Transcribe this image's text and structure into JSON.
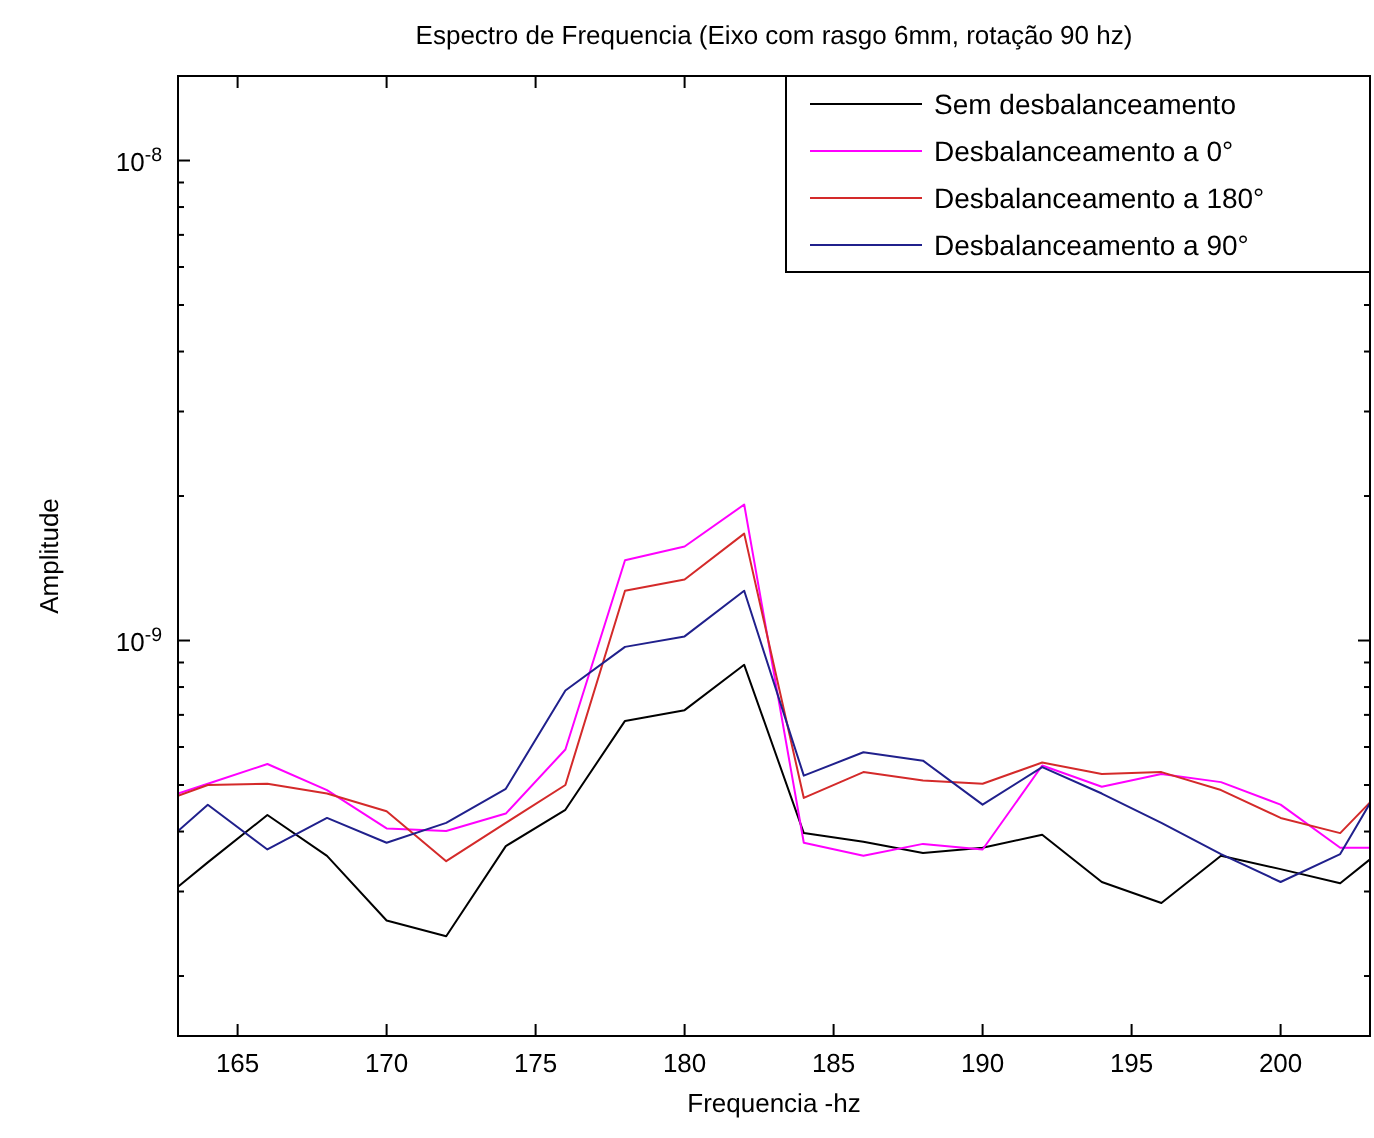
{
  "chart_data": {
    "type": "line",
    "title": "Espectro de Frequencia (Eixo com rasgo 6mm, rotação 90 hz)",
    "xlabel": "Frequencia -hz",
    "ylabel": "Amplitude",
    "log": "y",
    "legend": "top right",
    "grid": false,
    "line_style": "solid",
    "marker": "none",
    "x": [
      163,
      164,
      166,
      168,
      170,
      172,
      174,
      176,
      178,
      180,
      182,
      184,
      186,
      188,
      190,
      192,
      194,
      196,
      198,
      200,
      202,
      203
    ],
    "xlim": [
      163,
      203
    ],
    "xticks": [
      165,
      170,
      175,
      180,
      185,
      190,
      195,
      200
    ],
    "ylim": [
      1.5e-10,
      1.5e-08
    ],
    "yticks": [
      {
        "value": 2e-10,
        "label": null
      },
      {
        "value": 3e-10,
        "label": null
      },
      {
        "value": 4e-10,
        "label": null
      },
      {
        "value": 5e-10,
        "label": null
      },
      {
        "value": 6e-10,
        "label": null
      },
      {
        "value": 7e-10,
        "label": null
      },
      {
        "value": 8e-10,
        "label": null
      },
      {
        "value": 9e-10,
        "label": null
      },
      {
        "value": 1e-09,
        "label": "10$^{-9}$"
      },
      {
        "value": 2e-09,
        "label": null
      },
      {
        "value": 3e-09,
        "label": null
      },
      {
        "value": 4e-09,
        "label": null
      },
      {
        "value": 5e-09,
        "label": null
      },
      {
        "value": 6e-09,
        "label": null
      },
      {
        "value": 7e-09,
        "label": null
      },
      {
        "value": 8e-09,
        "label": null
      },
      {
        "value": 9e-09,
        "label": null
      },
      {
        "value": 1e-08,
        "label": "10$^{-8}$"
      }
    ],
    "series": [
      {
        "name": "Sem desbalanceamento",
        "color": "#000000",
        "values": [
          3.07e-10,
          3.45e-10,
          4.33e-10,
          3.56e-10,
          2.61e-10,
          2.42e-10,
          3.73e-10,
          4.44e-10,
          6.8e-10,
          7.16e-10,
          8.9e-10,
          3.97e-10,
          3.81e-10,
          3.61e-10,
          3.7e-10,
          3.94e-10,
          3.14e-10,
          2.84e-10,
          3.56e-10,
          3.34e-10,
          3.12e-10,
          3.5e-10
        ]
      },
      {
        "name": "Desbalanceamento a 0°",
        "color": "#ff00ff",
        "values": [
          4.8e-10,
          5.03e-10,
          5.53e-10,
          4.88e-10,
          4.06e-10,
          4.01e-10,
          4.36e-10,
          5.93e-10,
          1.47e-09,
          1.57e-09,
          1.92e-09,
          3.79e-10,
          3.56e-10,
          3.77e-10,
          3.67e-10,
          5.49e-10,
          4.96e-10,
          5.27e-10,
          5.07e-10,
          4.55e-10,
          3.7e-10,
          3.7e-10
        ]
      },
      {
        "name": "Desbalanceamento a 180°",
        "color": "#d42a2a",
        "values": [
          4.75e-10,
          5e-10,
          5.03e-10,
          4.8e-10,
          4.41e-10,
          3.47e-10,
          4.17e-10,
          5e-10,
          1.27e-09,
          1.34e-09,
          1.67e-09,
          4.7e-10,
          5.32e-10,
          5.11e-10,
          5.03e-10,
          5.57e-10,
          5.27e-10,
          5.32e-10,
          4.88e-10,
          4.27e-10,
          3.97e-10,
          4.6e-10
        ]
      },
      {
        "name": "Desbalanceamento a 90°",
        "color": "#20208c",
        "values": [
          4.01e-10,
          4.55e-10,
          3.67e-10,
          4.27e-10,
          3.79e-10,
          4.17e-10,
          4.91e-10,
          7.87e-10,
          9.7e-10,
          1.02e-09,
          1.27e-09,
          5.23e-10,
          5.85e-10,
          5.62e-10,
          4.55e-10,
          5.45e-10,
          4.8e-10,
          4.17e-10,
          3.59e-10,
          3.14e-10,
          3.59e-10,
          4.58e-10
        ]
      }
    ]
  }
}
